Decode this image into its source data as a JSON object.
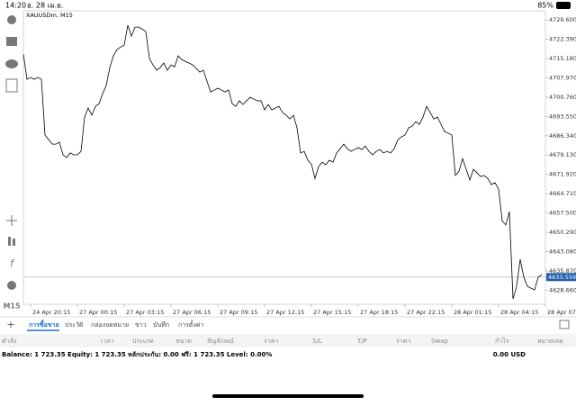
{
  "status_bar": {
    "time": "14:20",
    "date": "อ. 28 เม.ย.",
    "battery": "85%"
  },
  "toolbar": {
    "timeframe": "M15"
  },
  "chart_data": {
    "type": "line",
    "title": "XAUUSDm, M15",
    "color": "#000000",
    "xlim": [
      0,
      145
    ],
    "xticks": [
      {
        "value": 2,
        "label": "24 Apr 20:15"
      },
      {
        "value": 15,
        "label": "27 Apr 00:15"
      },
      {
        "value": 28,
        "label": "27 Apr 03:15"
      },
      {
        "value": 41,
        "label": "27 Apr 06:15"
      },
      {
        "value": 54,
        "label": "27 Apr 09:15"
      },
      {
        "value": 67,
        "label": "27 Apr 12:15"
      },
      {
        "value": 80,
        "label": "27 Apr 15:15"
      },
      {
        "value": 93,
        "label": "27 Apr 18:15"
      },
      {
        "value": 106,
        "label": "27 Apr 22:15"
      },
      {
        "value": 119,
        "label": "28 Apr 01:15"
      },
      {
        "value": 132,
        "label": "28 Apr 04:15"
      },
      {
        "value": 145,
        "label": "28 Apr 07:15"
      }
    ],
    "ylim": [
      4623.4,
      4733.0
    ],
    "yticks": [
      {
        "value": 4729.6,
        "label": "4729.600"
      },
      {
        "value": 4722.39,
        "label": "4722.390"
      },
      {
        "value": 4715.18,
        "label": "4715.180"
      },
      {
        "value": 4707.97,
        "label": "4707.970"
      },
      {
        "value": 4700.76,
        "label": "4700.760"
      },
      {
        "value": 4693.55,
        "label": "4693.550"
      },
      {
        "value": 4686.34,
        "label": "4686.340"
      },
      {
        "value": 4679.13,
        "label": "4679.130"
      },
      {
        "value": 4671.92,
        "label": "4671.920"
      },
      {
        "value": 4664.71,
        "label": "4664.710"
      },
      {
        "value": 4657.5,
        "label": "4657.500"
      },
      {
        "value": 4650.29,
        "label": "4650.290"
      },
      {
        "value": 4643.08,
        "label": "4643.080"
      },
      {
        "value": 4635.87,
        "label": "4635.870"
      },
      {
        "value": 4628.66,
        "label": "4628.660"
      }
    ],
    "last_price": 4633.559,
    "values": [
      4716.8,
      4707.4,
      4708.1,
      4707.4,
      4708.1,
      4707.4,
      4686.6,
      4684.9,
      4683.2,
      4683.2,
      4683.9,
      4679.2,
      4678.2,
      4679.9,
      4679.2,
      4679.2,
      4680.5,
      4693.3,
      4696.7,
      4694.0,
      4697.3,
      4698.3,
      4702.0,
      4705.1,
      4711.8,
      4716.2,
      4718.5,
      4719.5,
      4720.2,
      4727.6,
      4723.5,
      4726.9,
      4726.9,
      4726.2,
      4725.2,
      4715.2,
      4712.8,
      4710.8,
      4711.8,
      4713.5,
      4710.8,
      4712.8,
      4712.1,
      4716.2,
      4714.8,
      4714.1,
      4713.5,
      4712.8,
      4711.5,
      4710.1,
      4710.8,
      4706.7,
      4702.7,
      4703.4,
      4704.1,
      4703.4,
      4702.7,
      4703.4,
      4698.3,
      4697.3,
      4699.4,
      4698.0,
      4699.4,
      4700.7,
      4700.0,
      4699.4,
      4699.4,
      4696.0,
      4698.0,
      4696.0,
      4696.7,
      4697.3,
      4695.0,
      4694.0,
      4692.6,
      4694.0,
      4689.3,
      4679.9,
      4680.5,
      4677.2,
      4675.8,
      4670.4,
      4674.8,
      4676.5,
      4675.5,
      4677.2,
      4676.5,
      4679.9,
      4681.5,
      4683.2,
      4681.5,
      4680.5,
      4681.2,
      4681.9,
      4681.2,
      4682.5,
      4680.5,
      4679.2,
      4680.5,
      4681.2,
      4679.9,
      4680.5,
      4679.9,
      4681.5,
      4684.9,
      4685.9,
      4686.6,
      4689.3,
      4689.9,
      4691.6,
      4690.6,
      4693.3,
      4697.3,
      4695.0,
      4692.6,
      4693.3,
      4690.6,
      4687.9,
      4687.3,
      4686.6,
      4671.5,
      4673.1,
      4677.8,
      4673.8,
      4669.8,
      4673.8,
      4672.5,
      4671.1,
      4671.5,
      4670.4,
      4668.1,
      4668.8,
      4666.4,
      4654.6,
      4653.0,
      4658.0,
      4625.4,
      4630.1,
      4640.2,
      4633.5,
      4630.1,
      4629.4,
      4628.8,
      4633.5,
      4634.5
    ]
  },
  "tabs": [
    "การซื้อขาย",
    "ประวัติ",
    "กล่องจดหมาย",
    "ข่าว",
    "บันทึก",
    "การตั้งค่า"
  ],
  "columns": [
    "คำสั่ง",
    "เวลา",
    "ประเภท",
    "ขนาด",
    "สัญลักษณ์",
    "ราคา",
    "S/L",
    "T/P",
    "ราคา",
    "Swap",
    "กำไร",
    "หมายเหตุ"
  ],
  "account": {
    "summary": "Balance: 1 723.35 Equity: 1 723.35 หลักประกัน: 0.00 ฟรี: 1 723.35 Level: 0.00%",
    "profit": "0.00 USD"
  }
}
